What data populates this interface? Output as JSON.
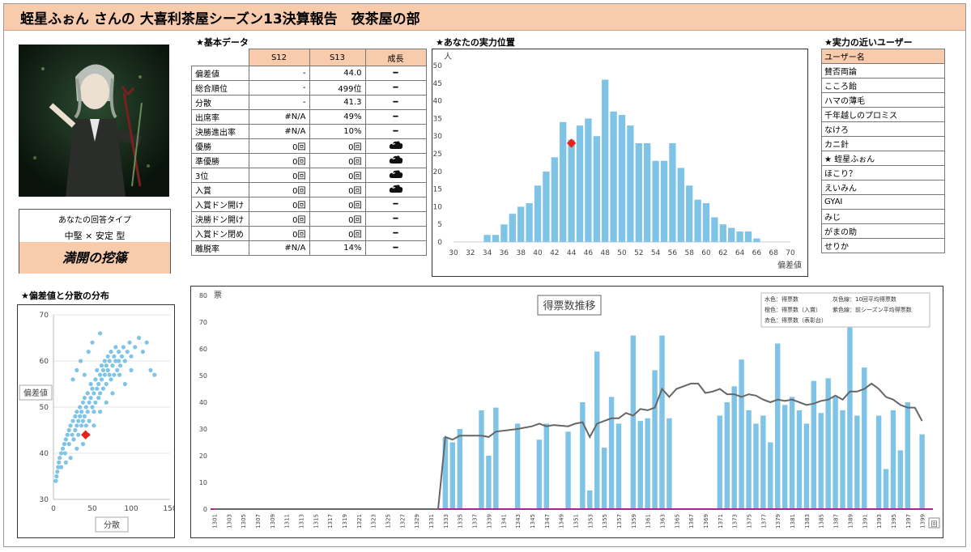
{
  "header": {
    "title": "蛭星ふぉん さんの 大喜利茶屋シーズン13決算報告　夜茶屋の部"
  },
  "sections": {
    "basic": "★基本データ",
    "position": "★あなたの実力位置",
    "similar": "★実力の近いユーザー",
    "scatter": "★偏差値と分散の分布"
  },
  "answer_type": {
    "label": "あなたの回答タイプ",
    "type": "中堅 × 安定 型",
    "title": "満開の挖篠"
  },
  "stats_table": {
    "headers": [
      "",
      "S12",
      "S13",
      "成長"
    ],
    "rows": [
      {
        "label": "偏差値",
        "s12": "-",
        "s13": "44.0",
        "growth": "━"
      },
      {
        "label": "総合順位",
        "s12": "-",
        "s13": "499位",
        "growth": "━"
      },
      {
        "label": "分散",
        "s12": "-",
        "s13": "41.3",
        "growth": "━"
      },
      {
        "label": "出席率",
        "s12": "#N/A",
        "s13": "49%",
        "growth": "━"
      },
      {
        "label": "決勝進出率",
        "s12": "#N/A",
        "s13": "10%",
        "growth": "━"
      },
      {
        "label": "優勝",
        "s12": "0回",
        "s13": "0回",
        "growth": "cloud-icon"
      },
      {
        "label": "準優勝",
        "s12": "0回",
        "s13": "0回",
        "growth": "cloud-icon"
      },
      {
        "label": "3位",
        "s12": "0回",
        "s13": "0回",
        "growth": "cloud-icon"
      },
      {
        "label": "入賞",
        "s12": "0回",
        "s13": "0回",
        "growth": "cloud-icon"
      },
      {
        "label": "入賞ドン開け",
        "s12": "0回",
        "s13": "0回",
        "growth": "━"
      },
      {
        "label": "決勝ドン開け",
        "s12": "0回",
        "s13": "0回",
        "growth": "━"
      },
      {
        "label": "入賞ドン閉め",
        "s12": "0回",
        "s13": "0回",
        "growth": "━"
      },
      {
        "label": "離脱率",
        "s12": "#N/A",
        "s13": "14%",
        "growth": "━"
      }
    ]
  },
  "similar_users": {
    "header": "ユーザー名",
    "names": [
      "賛否両論",
      "こころ飴",
      "ハマの薄毛",
      "千年越しのプロミス",
      "なけろ",
      "カニ針",
      "★ 蛭星ふぉん",
      "ほこり？",
      "えいみん",
      "GYAI",
      "みじ",
      "がまの助",
      "せりか"
    ]
  },
  "colors": {
    "accent": "#f8cbad",
    "bar": "#7fc4e6",
    "marker": "#e8211a",
    "avg_line": "#666666",
    "prev_line": "#b0208f"
  },
  "chart_data": [
    {
      "type": "bar",
      "title": "",
      "xlabel": "偏差値",
      "ylabel": "人",
      "xlim": [
        30,
        70
      ],
      "ylim": [
        0,
        50
      ],
      "xticks": [
        30,
        32,
        34,
        36,
        38,
        40,
        42,
        44,
        46,
        48,
        50,
        52,
        54,
        56,
        58,
        60,
        62,
        64,
        66,
        68,
        70
      ],
      "yticks": [
        0,
        5,
        10,
        15,
        20,
        25,
        30,
        35,
        40,
        45,
        50
      ],
      "categories": [
        34,
        35,
        36,
        37,
        38,
        39,
        40,
        41,
        42,
        43,
        44,
        45,
        46,
        47,
        48,
        49,
        50,
        51,
        52,
        53,
        54,
        55,
        56,
        57,
        58,
        59,
        60,
        61,
        62,
        63,
        64,
        65,
        66
      ],
      "values": [
        2,
        2,
        5,
        8,
        10,
        11,
        16,
        20,
        24,
        34,
        29,
        33,
        35,
        30,
        46,
        37,
        36,
        33,
        28,
        28,
        23,
        23,
        28,
        21,
        16,
        12,
        11,
        7,
        5,
        4,
        3,
        3,
        1
      ],
      "marker": {
        "x": 44,
        "y": 28
      }
    },
    {
      "type": "scatter",
      "title": "",
      "xlabel": "分散",
      "ylabel": "偏差値",
      "xlim": [
        0,
        150
      ],
      "ylim": [
        30,
        70
      ],
      "xticks": [
        0,
        50,
        100,
        150
      ],
      "yticks": [
        30,
        40,
        50,
        60,
        70
      ],
      "marker": {
        "x": 41.3,
        "y": 44.0
      },
      "points": [
        [
          3,
          34
        ],
        [
          4,
          35
        ],
        [
          5,
          36
        ],
        [
          6,
          37
        ],
        [
          7,
          38
        ],
        [
          8,
          39
        ],
        [
          10,
          40
        ],
        [
          12,
          41
        ],
        [
          14,
          42
        ],
        [
          15,
          40
        ],
        [
          16,
          43
        ],
        [
          18,
          44
        ],
        [
          20,
          42
        ],
        [
          20,
          45
        ],
        [
          22,
          46
        ],
        [
          24,
          44
        ],
        [
          25,
          47
        ],
        [
          26,
          43
        ],
        [
          28,
          45
        ],
        [
          28,
          48
        ],
        [
          30,
          46
        ],
        [
          30,
          49
        ],
        [
          32,
          44
        ],
        [
          32,
          47
        ],
        [
          34,
          48
        ],
        [
          34,
          50
        ],
        [
          36,
          46
        ],
        [
          36,
          49
        ],
        [
          38,
          51
        ],
        [
          38,
          47
        ],
        [
          40,
          48
        ],
        [
          40,
          52
        ],
        [
          42,
          50
        ],
        [
          42,
          46
        ],
        [
          44,
          49
        ],
        [
          44,
          53
        ],
        [
          46,
          51
        ],
        [
          46,
          47
        ],
        [
          48,
          52
        ],
        [
          48,
          55
        ],
        [
          50,
          50
        ],
        [
          50,
          54
        ],
        [
          52,
          53
        ],
        [
          52,
          49
        ],
        [
          54,
          56
        ],
        [
          54,
          51
        ],
        [
          56,
          54
        ],
        [
          56,
          58
        ],
        [
          58,
          52
        ],
        [
          58,
          55
        ],
        [
          60,
          57
        ],
        [
          60,
          53
        ],
        [
          62,
          56
        ],
        [
          62,
          59
        ],
        [
          64,
          54
        ],
        [
          64,
          58
        ],
        [
          66,
          57
        ],
        [
          66,
          60
        ],
        [
          68,
          55
        ],
        [
          68,
          59
        ],
        [
          70,
          58
        ],
        [
          70,
          61
        ],
        [
          72,
          57
        ],
        [
          72,
          60
        ],
        [
          74,
          62
        ],
        [
          74,
          56
        ],
        [
          76,
          59
        ],
        [
          78,
          61
        ],
        [
          78,
          57
        ],
        [
          80,
          60
        ],
        [
          80,
          63
        ],
        [
          82,
          58
        ],
        [
          84,
          62
        ],
        [
          84,
          60
        ],
        [
          86,
          59
        ],
        [
          88,
          61
        ],
        [
          90,
          63
        ],
        [
          92,
          60
        ],
        [
          95,
          62
        ],
        [
          98,
          64
        ],
        [
          100,
          61
        ],
        [
          105,
          63
        ],
        [
          110,
          65
        ],
        [
          115,
          62
        ],
        [
          120,
          64
        ],
        [
          125,
          58
        ],
        [
          130,
          57
        ],
        [
          100,
          58
        ],
        [
          92,
          55
        ],
        [
          85,
          57
        ],
        [
          76,
          53
        ],
        [
          68,
          51
        ],
        [
          60,
          49
        ],
        [
          52,
          46
        ],
        [
          45,
          44
        ],
        [
          38,
          42
        ],
        [
          30,
          41
        ],
        [
          22,
          39
        ],
        [
          16,
          38
        ],
        [
          10,
          37
        ],
        [
          35,
          60
        ],
        [
          30,
          58
        ],
        [
          45,
          62
        ],
        [
          50,
          64
        ],
        [
          60,
          66
        ],
        [
          25,
          56
        ],
        [
          40,
          57
        ]
      ]
    },
    {
      "type": "bar",
      "title": "得票数推移",
      "xlabel": "回",
      "ylabel": "票",
      "xlim": [
        1301,
        1400
      ],
      "ylim": [
        0,
        80
      ],
      "yticks": [
        0,
        10,
        20,
        30,
        40,
        50,
        60,
        70,
        80
      ],
      "xticks": [
        1301,
        1303,
        1305,
        1307,
        1309,
        1311,
        1313,
        1315,
        1317,
        1319,
        1321,
        1323,
        1325,
        1327,
        1329,
        1331,
        1333,
        1335,
        1337,
        1339,
        1341,
        1343,
        1345,
        1347,
        1349,
        1351,
        1353,
        1355,
        1357,
        1359,
        1361,
        1363,
        1365,
        1367,
        1369,
        1371,
        1373,
        1375,
        1377,
        1379,
        1381,
        1383,
        1385,
        1387,
        1389,
        1391,
        1393,
        1395,
        1397,
        1399
      ],
      "legend": [
        "水色：得票数",
        "橙色：得票数（入賞）",
        "赤色：得票数（表彰台）",
        "灰色線：10回平均得票数",
        "紫色線：前シーズン平均得票数"
      ],
      "votes": [
        [
          1333,
          27
        ],
        [
          1334,
          25
        ],
        [
          1335,
          30
        ],
        [
          1338,
          37
        ],
        [
          1339,
          20
        ],
        [
          1340,
          38
        ],
        [
          1343,
          32
        ],
        [
          1346,
          26
        ],
        [
          1347,
          32
        ],
        [
          1350,
          29
        ],
        [
          1352,
          40
        ],
        [
          1353,
          7
        ],
        [
          1354,
          59
        ],
        [
          1355,
          23
        ],
        [
          1356,
          42
        ],
        [
          1357,
          32
        ],
        [
          1359,
          65
        ],
        [
          1360,
          33
        ],
        [
          1361,
          34
        ],
        [
          1362,
          52
        ],
        [
          1363,
          65
        ],
        [
          1364,
          34
        ],
        [
          1371,
          35
        ],
        [
          1372,
          40
        ],
        [
          1373,
          46
        ],
        [
          1374,
          56
        ],
        [
          1375,
          37
        ],
        [
          1376,
          32
        ],
        [
          1377,
          35
        ],
        [
          1378,
          25
        ],
        [
          1379,
          62
        ],
        [
          1380,
          39
        ],
        [
          1381,
          42
        ],
        [
          1382,
          37
        ],
        [
          1383,
          32
        ],
        [
          1384,
          48
        ],
        [
          1385,
          36
        ],
        [
          1386,
          49
        ],
        [
          1387,
          42
        ],
        [
          1388,
          37
        ],
        [
          1389,
          68
        ],
        [
          1390,
          35
        ],
        [
          1391,
          53
        ],
        [
          1393,
          35
        ],
        [
          1394,
          15
        ],
        [
          1395,
          37
        ],
        [
          1396,
          22
        ],
        [
          1397,
          40
        ],
        [
          1399,
          28
        ]
      ],
      "avg_line": [
        [
          1332,
          0
        ],
        [
          1333,
          27
        ],
        [
          1334,
          26
        ],
        [
          1335,
          27.5
        ],
        [
          1338,
          27.5
        ],
        [
          1339,
          27
        ],
        [
          1340,
          29
        ],
        [
          1343,
          30
        ],
        [
          1345,
          31
        ],
        [
          1346,
          32
        ],
        [
          1347,
          31
        ],
        [
          1348,
          31.5
        ],
        [
          1350,
          31
        ],
        [
          1351,
          32
        ],
        [
          1352,
          32.5
        ],
        [
          1353,
          27
        ],
        [
          1354,
          32
        ],
        [
          1355,
          33
        ],
        [
          1356,
          34
        ],
        [
          1357,
          34
        ],
        [
          1358,
          36
        ],
        [
          1359,
          35
        ],
        [
          1360,
          37.5
        ],
        [
          1361,
          37
        ],
        [
          1362,
          38
        ],
        [
          1363,
          45
        ],
        [
          1364,
          42
        ],
        [
          1365,
          45
        ],
        [
          1366,
          46
        ],
        [
          1367,
          47
        ],
        [
          1368,
          47
        ],
        [
          1369,
          43.5
        ],
        [
          1370,
          44
        ],
        [
          1371,
          45
        ],
        [
          1372,
          43
        ],
        [
          1373,
          43
        ],
        [
          1374,
          42
        ],
        [
          1375,
          43
        ],
        [
          1376,
          42.5
        ],
        [
          1377,
          41
        ],
        [
          1378,
          40
        ],
        [
          1379,
          41
        ],
        [
          1380,
          40.5
        ],
        [
          1381,
          41
        ],
        [
          1382,
          40
        ],
        [
          1383,
          39
        ],
        [
          1384,
          39.5
        ],
        [
          1385,
          40.5
        ],
        [
          1386,
          41
        ],
        [
          1387,
          42.5
        ],
        [
          1388,
          41
        ],
        [
          1389,
          44
        ],
        [
          1390,
          44
        ],
        [
          1391,
          45
        ],
        [
          1392,
          47
        ],
        [
          1393,
          45
        ],
        [
          1394,
          42
        ],
        [
          1395,
          41
        ],
        [
          1396,
          39
        ],
        [
          1397,
          38
        ],
        [
          1398,
          38
        ],
        [
          1399,
          33
        ]
      ],
      "prev_line": 0
    }
  ]
}
